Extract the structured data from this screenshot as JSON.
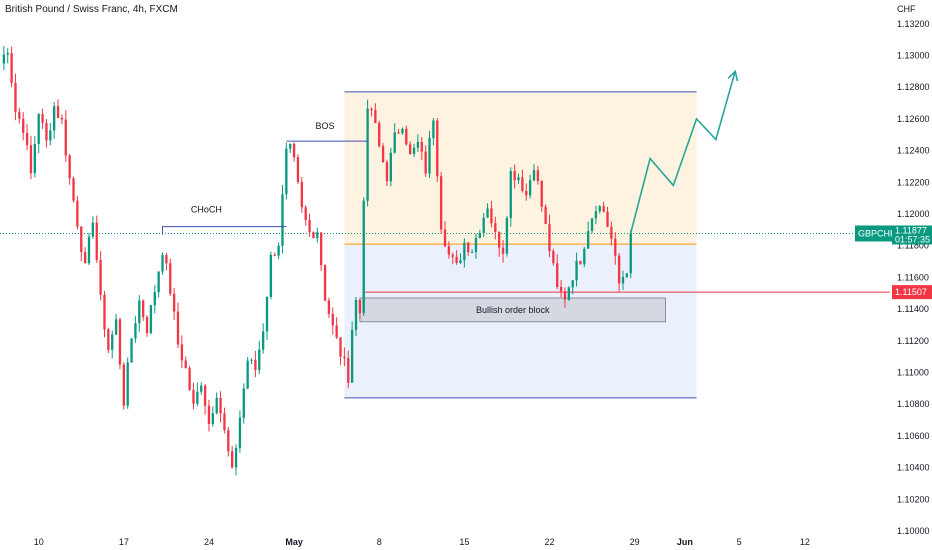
{
  "header": {
    "title": "British Pound / Swiss Franc, 4h, FXCM"
  },
  "chart_data": {
    "type": "candlestick",
    "symbol": "GBPCHF",
    "y_unit": "CHF",
    "ylim": [
      1.1,
      1.1335
    ],
    "grid": false,
    "y_ticks": [
      "1.13200",
      "1.13000",
      "1.12800",
      "1.12600",
      "1.12400",
      "1.12200",
      "1.12000",
      "1.11800",
      "1.11600",
      "1.11400",
      "1.11200",
      "1.11000",
      "1.10800",
      "1.10600",
      "1.10400",
      "1.10200",
      "1.10000"
    ],
    "x_ticks": [
      {
        "label": "10",
        "i": 10,
        "bold": false
      },
      {
        "label": "17",
        "i": 32,
        "bold": false
      },
      {
        "label": "24",
        "i": 54,
        "bold": false
      },
      {
        "label": "May",
        "i": 76,
        "bold": true
      },
      {
        "label": "8",
        "i": 98,
        "bold": false
      },
      {
        "label": "15",
        "i": 120,
        "bold": false
      },
      {
        "label": "22",
        "i": 142,
        "bold": false
      },
      {
        "label": "29",
        "i": 164,
        "bold": false
      },
      {
        "label": "Jun",
        "i": 177,
        "bold": true
      },
      {
        "label": "5",
        "i": 191,
        "bold": false
      },
      {
        "label": "12",
        "i": 208,
        "bold": false
      }
    ],
    "x_range": [
      0,
      230
    ],
    "waypoints": [
      [
        0,
        1.1295
      ],
      [
        2,
        1.1305
      ],
      [
        4,
        1.1265
      ],
      [
        6,
        1.1255
      ],
      [
        8,
        1.1225
      ],
      [
        10,
        1.1265
      ],
      [
        12,
        1.1245
      ],
      [
        14,
        1.1268
      ],
      [
        16,
        1.1258
      ],
      [
        18,
        1.1222
      ],
      [
        20,
        1.1195
      ],
      [
        22,
        1.1165
      ],
      [
        24,
        1.1198
      ],
      [
        26,
        1.1145
      ],
      [
        28,
        1.1115
      ],
      [
        30,
        1.1132
      ],
      [
        32,
        1.1082
      ],
      [
        34,
        1.1122
      ],
      [
        36,
        1.1145
      ],
      [
        38,
        1.1128
      ],
      [
        40,
        1.1152
      ],
      [
        42,
        1.1178
      ],
      [
        44,
        1.1152
      ],
      [
        46,
        1.1118
      ],
      [
        48,
        1.1102
      ],
      [
        50,
        1.1078
      ],
      [
        52,
        1.1095
      ],
      [
        54,
        1.1068
      ],
      [
        56,
        1.1088
      ],
      [
        58,
        1.1062
      ],
      [
        60,
        1.1036
      ],
      [
        62,
        1.1072
      ],
      [
        64,
        1.1108
      ],
      [
        66,
        1.1102
      ],
      [
        68,
        1.1128
      ],
      [
        70,
        1.1172
      ],
      [
        72,
        1.1182
      ],
      [
        74,
        1.1238
      ],
      [
        75,
        1.124
      ],
      [
        76,
        1.1232
      ],
      [
        78,
        1.1202
      ],
      [
        80,
        1.1188
      ],
      [
        82,
        1.119
      ],
      [
        84,
        1.1148
      ],
      [
        86,
        1.1128
      ],
      [
        88,
        1.1112
      ],
      [
        90,
        1.1098
      ],
      [
        91,
        1.1128
      ],
      [
        92,
        1.1145
      ],
      [
        93,
        1.1138
      ],
      [
        94,
        1.1212
      ],
      [
        95,
        1.1262
      ],
      [
        96,
        1.1266
      ],
      [
        98,
        1.1242
      ],
      [
        100,
        1.1224
      ],
      [
        102,
        1.1248
      ],
      [
        104,
        1.1258
      ],
      [
        106,
        1.1236
      ],
      [
        108,
        1.1244
      ],
      [
        110,
        1.1228
      ],
      [
        112,
        1.1262
      ],
      [
        114,
        1.1194
      ],
      [
        116,
        1.1174
      ],
      [
        118,
        1.1166
      ],
      [
        120,
        1.1182
      ],
      [
        122,
        1.1178
      ],
      [
        124,
        1.1192
      ],
      [
        126,
        1.1206
      ],
      [
        128,
        1.1186
      ],
      [
        130,
        1.1178
      ],
      [
        132,
        1.1226
      ],
      [
        134,
        1.1224
      ],
      [
        136,
        1.1212
      ],
      [
        138,
        1.1232
      ],
      [
        140,
        1.1205
      ],
      [
        142,
        1.1178
      ],
      [
        144,
        1.1152
      ],
      [
        146,
        1.1148
      ],
      [
        148,
        1.1162
      ],
      [
        150,
        1.1172
      ],
      [
        152,
        1.1192
      ],
      [
        154,
        1.1206
      ],
      [
        156,
        1.1202
      ],
      [
        158,
        1.1184
      ],
      [
        160,
        1.1156
      ],
      [
        162,
        1.1166
      ],
      [
        163,
        1.1188
      ]
    ],
    "projection": [
      [
        163,
        1.1188
      ],
      [
        168,
        1.1235
      ],
      [
        174,
        1.1218
      ],
      [
        180,
        1.126
      ],
      [
        185,
        1.1247
      ],
      [
        190,
        1.129
      ]
    ],
    "premium_zone": {
      "x1": 89,
      "x2": 180,
      "y_top": 1.1277,
      "y_bottom": 1.1181
    },
    "discount_zone": {
      "x1": 89,
      "x2": 180,
      "y_top": 1.1181,
      "y_bottom": 1.1084
    },
    "order_block": {
      "label": "Bullish order block",
      "x1": 93,
      "x2": 172,
      "y_top": 1.1147,
      "y_bottom": 1.1132
    },
    "choch": {
      "label": "CHoCH",
      "x1": 42,
      "x2": 74,
      "y": 1.1192
    },
    "bos": {
      "label": "BOS",
      "x1": 74,
      "x2": 95,
      "y": 1.1246
    },
    "current_price": {
      "value": 1.11877,
      "label": "1.11877",
      "symbol_label": "GBPCHF",
      "countdown": "01:57:35",
      "color": "#089981"
    },
    "level_line": {
      "value": 1.11507,
      "label": "1.11507",
      "color": "#f23645"
    },
    "colors": {
      "up": "#089981",
      "down": "#f23645",
      "premium": "#fdf3e0",
      "discount": "#eaf0fc",
      "zone_line": "#3f51b5",
      "order_block": "#d1d4dc",
      "mid_line": "#ff9800",
      "projection": "#26a69a"
    }
  }
}
